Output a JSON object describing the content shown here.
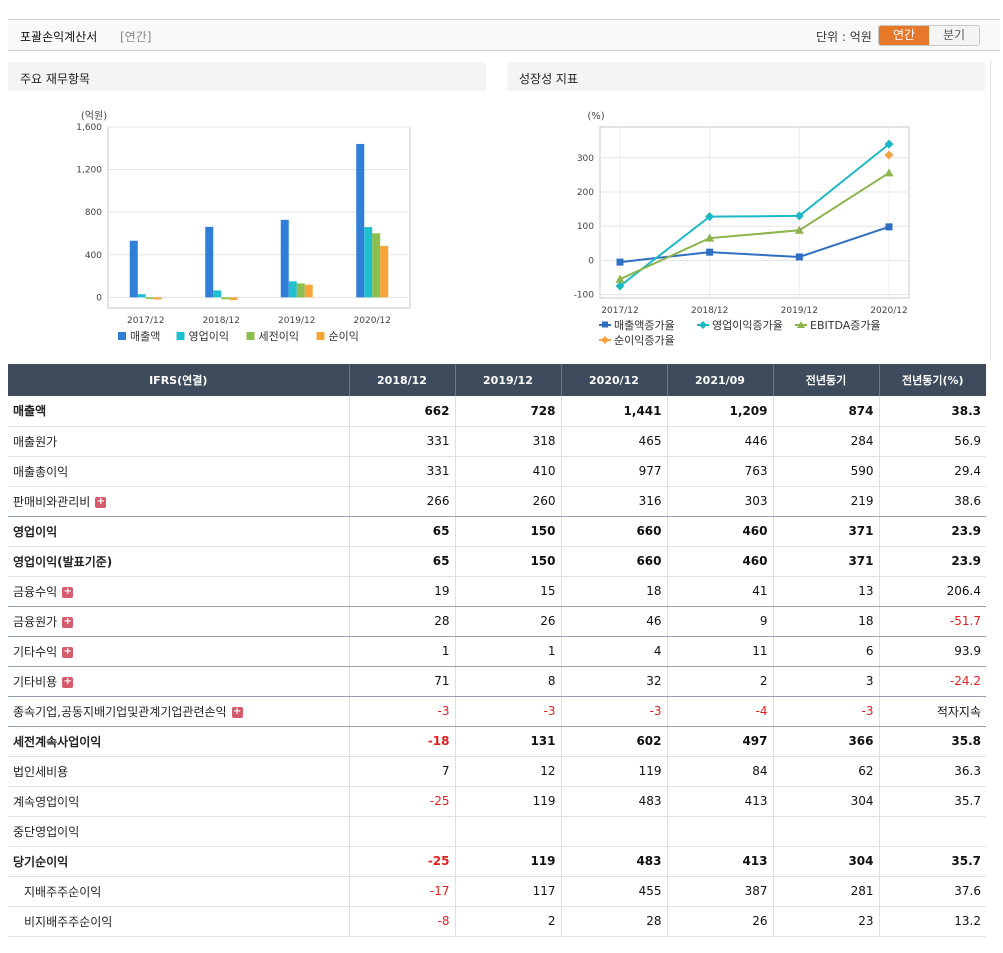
{
  "header": {
    "title": "포괄손익계산서",
    "period_tag": "[연간]",
    "unit": "단위 : 억원",
    "tab_annual": "연간",
    "tab_quarter": "분기"
  },
  "chart1_title": "주요 재무항목",
  "chart2_title": "성장성 지표",
  "chart_data": [
    {
      "type": "bar",
      "title": "",
      "ylabel": "(억원)",
      "ylim": [
        -100,
        1600
      ],
      "yticks": [
        0,
        400,
        800,
        1200,
        1600
      ],
      "ytick_labels": [
        "0",
        "400",
        "800",
        "1,200",
        "1,600"
      ],
      "categories": [
        "2017/12",
        "2018/12",
        "2019/12",
        "2020/12"
      ],
      "series": [
        {
          "name": "매출액",
          "color": "#2f7ed8",
          "values": [
            532,
            662,
            728,
            1441
          ]
        },
        {
          "name": "영업이익",
          "color": "#1fbfcf",
          "values": [
            30,
            65,
            150,
            660
          ]
        },
        {
          "name": "세전이익",
          "color": "#8bbf4f",
          "values": [
            -15,
            -18,
            131,
            602
          ]
        },
        {
          "name": "순이익",
          "color": "#f6a53a",
          "values": [
            -20,
            -25,
            119,
            483
          ]
        }
      ],
      "legend_position": "bottom",
      "grid": true
    },
    {
      "type": "line",
      "title": "",
      "ylabel": "(%)",
      "ylim": [
        -110,
        390
      ],
      "yticks": [
        -100,
        0,
        100,
        200,
        300
      ],
      "ytick_labels": [
        "-100",
        "0",
        "100",
        "200",
        "300"
      ],
      "categories": [
        "2017/12",
        "2018/12",
        "2019/12",
        "2020/12"
      ],
      "series": [
        {
          "name": "매출액증가율",
          "color": "#2f6fc2",
          "marker": "square",
          "values": [
            -5,
            24,
            10,
            98
          ]
        },
        {
          "name": "영업이익증가율",
          "color": "#1cb8c4",
          "marker": "diamond",
          "values": [
            -75,
            128,
            130,
            340
          ]
        },
        {
          "name": "EBITDA증가율",
          "color": "#8db34d",
          "marker": "triangle",
          "values": [
            -55,
            65,
            88,
            256
          ]
        },
        {
          "name": "순이익증가율",
          "color": "#f4a340",
          "marker": "diamond",
          "values": [
            null,
            null,
            null,
            308
          ]
        }
      ],
      "legend_position": "bottom",
      "grid": true
    }
  ],
  "table": {
    "headers": [
      "IFRS(연결)",
      "2018/12",
      "2019/12",
      "2020/12",
      "2021/09",
      "전년동기",
      "전년동기(%)"
    ],
    "rows": [
      {
        "label": "매출액",
        "bold": true,
        "values": [
          "662",
          "728",
          "1,441",
          "1,209",
          "874",
          "38.3"
        ]
      },
      {
        "label": "매출원가",
        "values": [
          "331",
          "318",
          "465",
          "446",
          "284",
          "56.9"
        ]
      },
      {
        "label": "매출총이익",
        "values": [
          "331",
          "410",
          "977",
          "763",
          "590",
          "29.4"
        ]
      },
      {
        "label": "판매비와관리비",
        "expand": true,
        "sep": true,
        "values": [
          "266",
          "260",
          "316",
          "303",
          "219",
          "38.6"
        ]
      },
      {
        "label": "영업이익",
        "bold": true,
        "values": [
          "65",
          "150",
          "660",
          "460",
          "371",
          "23.9"
        ]
      },
      {
        "label": "영업이익(발표기준)",
        "bold": true,
        "values": [
          "65",
          "150",
          "660",
          "460",
          "371",
          "23.9"
        ]
      },
      {
        "label": "금융수익",
        "expand": true,
        "sep": true,
        "values": [
          "19",
          "15",
          "18",
          "41",
          "13",
          "206.4"
        ]
      },
      {
        "label": "금융원가",
        "expand": true,
        "sep": true,
        "values": [
          "28",
          "26",
          "46",
          "9",
          "18",
          "-51.7"
        ]
      },
      {
        "label": "기타수익",
        "expand": true,
        "sep": true,
        "values": [
          "1",
          "1",
          "4",
          "11",
          "6",
          "93.9"
        ]
      },
      {
        "label": "기타비용",
        "expand": true,
        "sep": true,
        "values": [
          "71",
          "8",
          "32",
          "2",
          "3",
          "-24.2"
        ]
      },
      {
        "label": "종속기업,공동지배기업및관계기업관련손익",
        "expand": true,
        "sep": true,
        "values": [
          "-3",
          "-3",
          "-3",
          "-4",
          "-3",
          "적자지속"
        ]
      },
      {
        "label": "세전계속사업이익",
        "bold": true,
        "values": [
          "-18",
          "131",
          "602",
          "497",
          "366",
          "35.8"
        ]
      },
      {
        "label": "법인세비용",
        "values": [
          "7",
          "12",
          "119",
          "84",
          "62",
          "36.3"
        ]
      },
      {
        "label": "계속영업이익",
        "values": [
          "-25",
          "119",
          "483",
          "413",
          "304",
          "35.7"
        ]
      },
      {
        "label": "중단영업이익",
        "values": [
          "",
          "",
          "",
          "",
          "",
          ""
        ]
      },
      {
        "label": "당기순이익",
        "bold": true,
        "values": [
          "-25",
          "119",
          "483",
          "413",
          "304",
          "35.7"
        ]
      },
      {
        "label": "지배주주순이익",
        "indent": true,
        "values": [
          "-17",
          "117",
          "455",
          "387",
          "281",
          "37.6"
        ]
      },
      {
        "label": "비지배주주순이익",
        "indent": true,
        "values": [
          "-8",
          "2",
          "28",
          "26",
          "23",
          "13.2"
        ]
      }
    ]
  }
}
